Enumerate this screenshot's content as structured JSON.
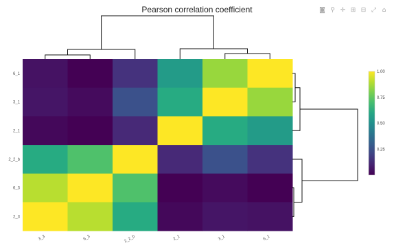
{
  "toolbar": {
    "icons": [
      "camera-icon",
      "zoom-icon",
      "pan-icon",
      "zoom-in-icon",
      "zoom-out-icon",
      "autoscale-icon",
      "reset-axes-icon"
    ],
    "glyphs": [
      "◙",
      "⚲",
      "✛",
      "⊞",
      "⊟",
      "⤢",
      "⌂"
    ]
  },
  "chart_data": {
    "type": "heatmap",
    "title": "Pearson correlation coefficient",
    "x_labels": [
      "3_3",
      "6_3",
      "2_2_b",
      "2_1",
      "3_1",
      "6_1"
    ],
    "y_labels": [
      "6_1",
      "3_1",
      "2_1",
      "2_2_b",
      "6_3",
      "2_3"
    ],
    "values": [
      [
        0.05,
        0.0,
        0.15,
        0.55,
        0.85,
        1.0
      ],
      [
        0.06,
        0.03,
        0.25,
        0.62,
        1.0,
        0.85
      ],
      [
        0.02,
        0.0,
        0.12,
        1.0,
        0.62,
        0.55
      ],
      [
        0.62,
        0.72,
        1.0,
        0.12,
        0.25,
        0.15
      ],
      [
        0.9,
        1.0,
        0.72,
        0.0,
        0.03,
        0.0
      ],
      [
        1.0,
        0.9,
        0.62,
        0.02,
        0.06,
        0.05
      ]
    ],
    "colorscale": "Viridis",
    "zlim": [
      0,
      1
    ],
    "colorbar_ticks": [
      "0.25",
      "0.50",
      "0.75",
      "1.00"
    ],
    "colorbar_tick_values": [
      0.25,
      0.5,
      0.75,
      1.0
    ],
    "dendrograms": [
      "top",
      "right"
    ],
    "legend": "right"
  }
}
